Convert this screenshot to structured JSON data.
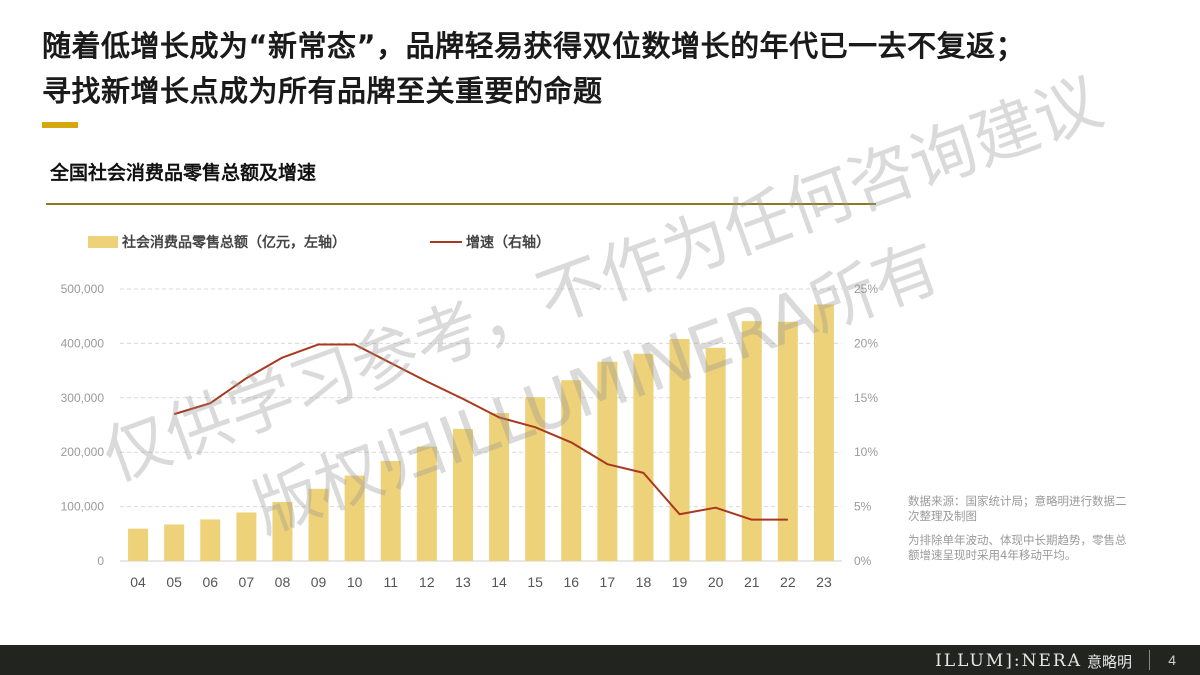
{
  "headline": {
    "line1": "随着低增长成为“新常态”，品牌轻易获得双位数增长的年代已一去不复返；",
    "line2": "寻找新增长点成为所有品牌至关重要的命题"
  },
  "chart_title": "全国社会消费品零售总额及增速",
  "notes": {
    "source": "数据来源：国家统计局；意略明进行数据二次整理及制图",
    "method": "为排除单年波动、体现中长期趋势，零售总额增速呈现时采用4年移动平均。"
  },
  "watermark": {
    "line1": "仅供学习参考，不作为任何咨询建议",
    "line2": "版权归ILLUMINERA所有"
  },
  "footer": {
    "brand": "ILLUM]:NERA",
    "brand_cn": "意略明",
    "page": "4"
  },
  "colors": {
    "bar": "#edd27a",
    "line": "#a8391e",
    "accent": "#d4a80e",
    "footer_bg": "#22241f"
  },
  "chart_data": {
    "type": "bar",
    "categories": [
      "04",
      "05",
      "06",
      "07",
      "08",
      "09",
      "10",
      "11",
      "12",
      "13",
      "14",
      "15",
      "16",
      "17",
      "18",
      "19",
      "20",
      "21",
      "22",
      "23"
    ],
    "series": [
      {
        "name": "社会消费品零售总额（亿元，左轴）",
        "kind": "bar",
        "axis": "left",
        "values": [
          59501,
          67177,
          76410,
          89210,
          108488,
          132678,
          156998,
          183919,
          210307,
          242843,
          271896,
          300931,
          332316,
          366262,
          380987,
          408017,
          391981,
          440823,
          439733,
          471495
        ]
      },
      {
        "name": "增速（右轴）",
        "kind": "line",
        "axis": "right",
        "values": [
          null,
          13.5,
          14.5,
          16.8,
          18.7,
          19.9,
          19.9,
          18.2,
          16.5,
          14.9,
          13.2,
          12.3,
          10.9,
          8.9,
          8.1,
          4.3,
          4.9,
          3.8,
          3.8,
          null
        ]
      }
    ],
    "y_left": {
      "min": 0,
      "max": 500000,
      "ticks": [
        "0",
        "100,000",
        "200,000",
        "300,000",
        "400,000",
        "500,000"
      ]
    },
    "y_right": {
      "min": 0,
      "max": 25,
      "ticks": [
        "0%",
        "5%",
        "10%",
        "15%",
        "20%",
        "25%"
      ]
    },
    "legend_position": "top-left",
    "grid": "dashed horizontal"
  }
}
